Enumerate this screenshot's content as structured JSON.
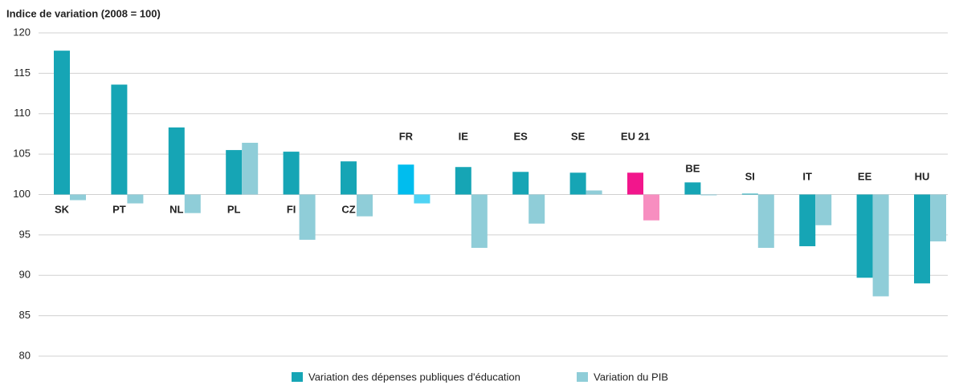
{
  "chart_data": {
    "type": "bar",
    "title": "Indice de variation (2008 = 100)",
    "categories": [
      "SK",
      "PT",
      "NL",
      "PL",
      "FI",
      "CZ",
      "FR",
      "IE",
      "ES",
      "SE",
      "EU 21",
      "BE",
      "SI",
      "IT",
      "EE",
      "HU"
    ],
    "series": [
      {
        "name": "Variation des dépenses publiques d'éducation",
        "color": "#16a5b5",
        "colors": [
          "#16a5b5",
          "#16a5b5",
          "#16a5b5",
          "#16a5b5",
          "#16a5b5",
          "#16a5b5",
          "#00bdee",
          "#16a5b5",
          "#16a5b5",
          "#16a5b5",
          "#f2168c",
          "#16a5b5",
          "#16a5b5",
          "#16a5b5",
          "#16a5b5",
          "#16a5b5"
        ],
        "values": [
          117.8,
          113.6,
          108.3,
          105.5,
          105.3,
          104.1,
          103.7,
          103.4,
          102.8,
          102.7,
          102.7,
          101.5,
          100.1,
          93.6,
          89.7,
          89.0
        ]
      },
      {
        "name": "Variation du PIB",
        "color": "#8fcdd8",
        "colors": [
          "#8fcdd8",
          "#8fcdd8",
          "#8fcdd8",
          "#8fcdd8",
          "#8fcdd8",
          "#8fcdd8",
          "#4fd3f4",
          "#8fcdd8",
          "#8fcdd8",
          "#8fcdd8",
          "#f78ec0",
          "#8fcdd8",
          "#8fcdd8",
          "#8fcdd8",
          "#8fcdd8",
          "#8fcdd8"
        ],
        "values": [
          99.3,
          98.9,
          97.7,
          106.4,
          94.4,
          97.3,
          98.9,
          93.4,
          96.4,
          100.5,
          96.8,
          99.9,
          93.4,
          96.2,
          87.4,
          94.2
        ]
      }
    ],
    "baseline": 100,
    "ylim": [
      80,
      120
    ],
    "yticks": [
      80,
      85,
      90,
      95,
      100,
      105,
      110,
      115,
      120
    ],
    "grid": true,
    "legend": "bottom"
  }
}
